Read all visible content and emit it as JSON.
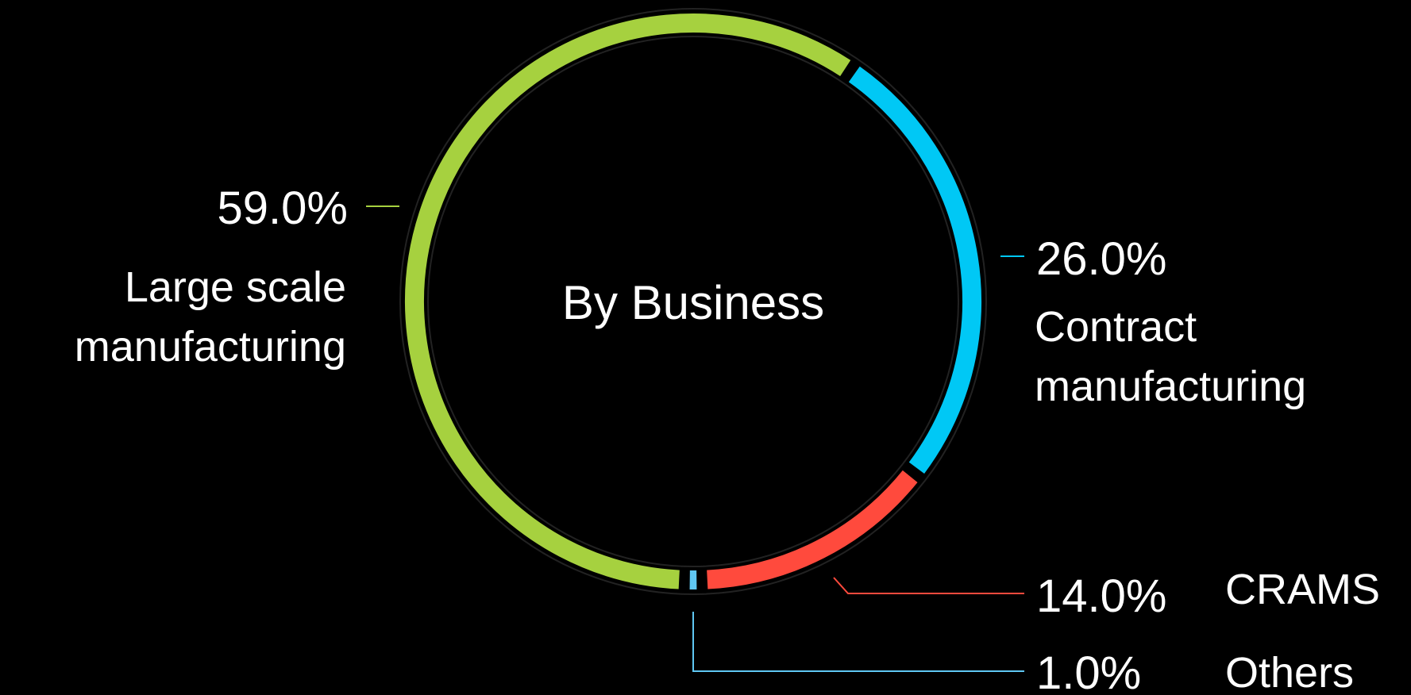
{
  "chart_data": {
    "type": "pie",
    "style": "donut",
    "center_label": "By Business",
    "slices": [
      {
        "pct_text": "59.0%",
        "name_lines": [
          "Large scale",
          "manufacturing"
        ],
        "value": 59.0,
        "color": "#a6d13f"
      },
      {
        "pct_text": "26.0%",
        "name_lines": [
          "Contract",
          "manufacturing"
        ],
        "value": 26.0,
        "color": "#00c8f5"
      },
      {
        "pct_text": "14.0%",
        "name_lines": [
          "CRAMS"
        ],
        "value": 14.0,
        "color": "#ff4a3d"
      },
      {
        "pct_text": "1.0%",
        "name_lines": [
          "Others"
        ],
        "value": 1.0,
        "color": "#5fc7f2"
      }
    ]
  }
}
